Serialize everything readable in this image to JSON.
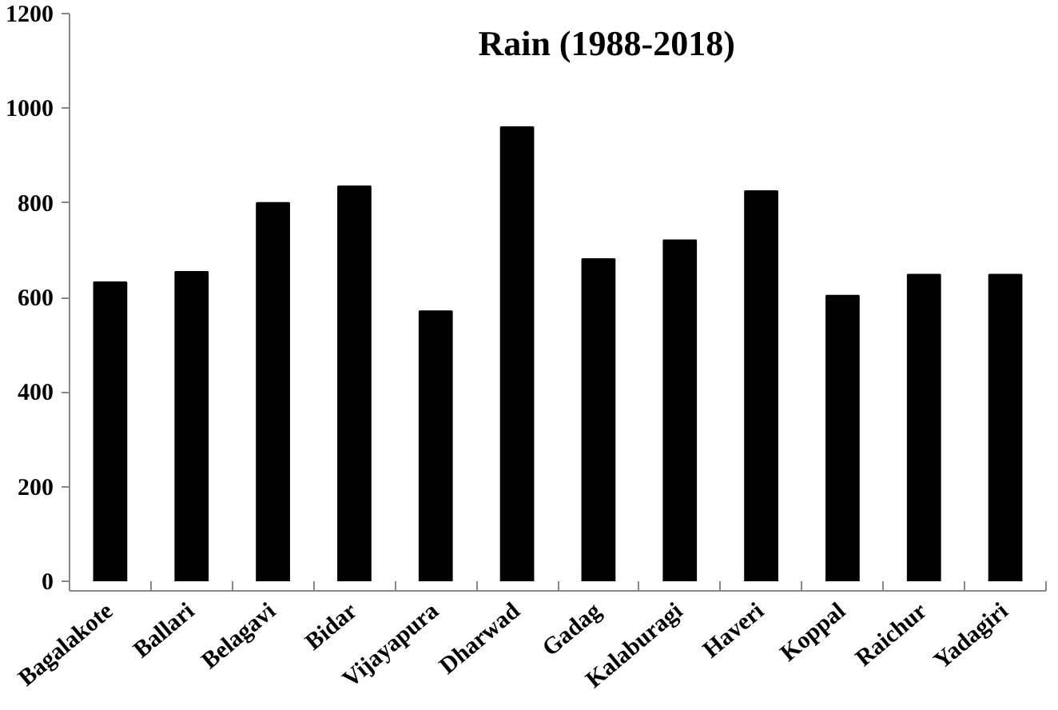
{
  "chart_data": {
    "type": "bar",
    "title": "Rain (1988-2018)",
    "categories": [
      "Bagalakote",
      "Ballari",
      "Belagavi",
      "Bidar",
      "Vijayapura",
      "Dharwad",
      "Gadag",
      "Kalaburagi",
      "Haveri",
      "Koppal",
      "Raichur",
      "Yadagiri"
    ],
    "values": [
      632,
      654,
      800,
      835,
      571,
      960,
      681,
      721,
      825,
      604,
      648,
      648
    ],
    "color": "#000000",
    "ylim": [
      0,
      1200
    ],
    "yticks": [
      0,
      200,
      400,
      600,
      800,
      1000,
      1200
    ],
    "grid": false
  }
}
